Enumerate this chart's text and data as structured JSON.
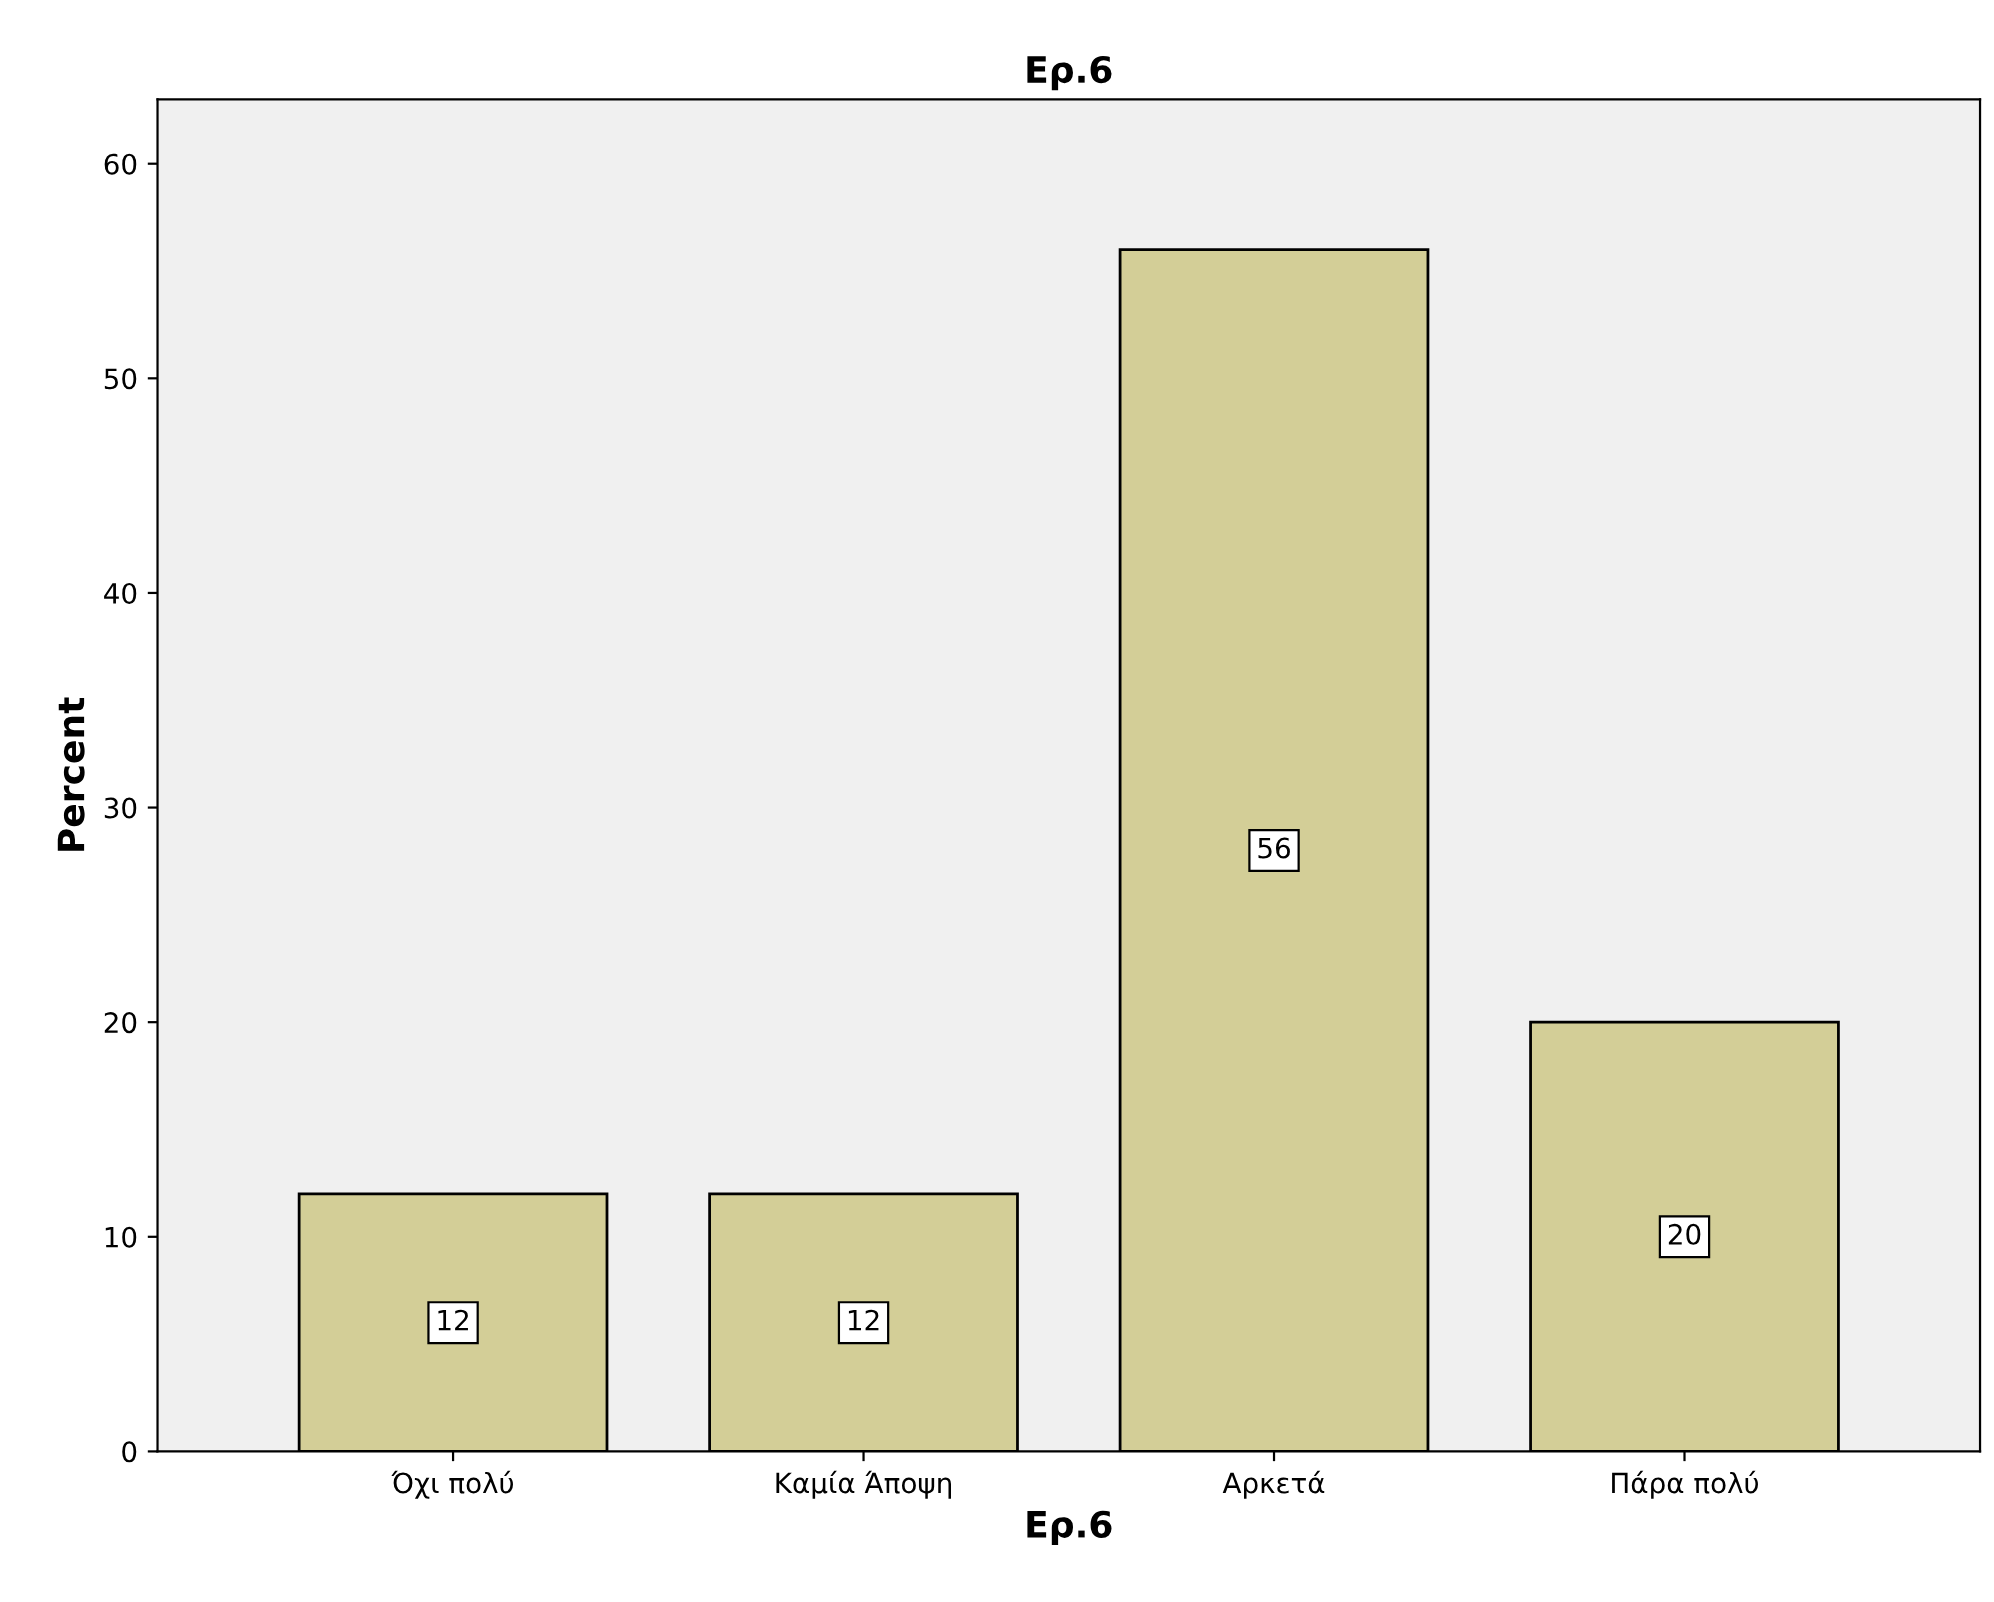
{
  "chart_data": {
    "type": "bar",
    "title": "Ερ.6",
    "xlabel": "Ερ.6",
    "ylabel": "Percent",
    "categories": [
      "Όχι πολύ",
      "Καμία Άποψη",
      "Αρκετά",
      "Πάρα πολύ"
    ],
    "values": [
      12,
      12,
      56,
      20
    ],
    "color": "#d3ce97",
    "ylim": [
      0,
      63
    ],
    "yticks": [
      0,
      10,
      20,
      30,
      40,
      50,
      60
    ],
    "grid": false,
    "data_labels": true
  }
}
